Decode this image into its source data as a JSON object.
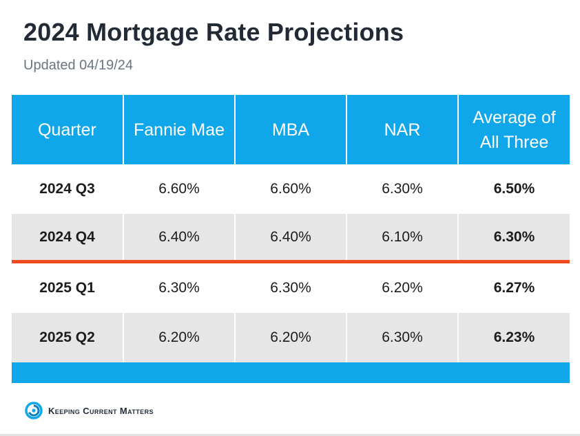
{
  "header": {
    "title": "2024 Mortgage Rate Projections",
    "subtitle": "Updated 04/19/24"
  },
  "chart_data": {
    "type": "table",
    "title": "2024 Mortgage Rate Projections",
    "subtitle": "Updated 04/19/24",
    "columns": [
      "Quarter",
      "Fannie Mae",
      "MBA",
      "NAR",
      "Average of All Three"
    ],
    "rows": [
      {
        "quarter": "2024 Q3",
        "fannie_mae": "6.60%",
        "mba": "6.60%",
        "nar": "6.30%",
        "average": "6.50%"
      },
      {
        "quarter": "2024 Q4",
        "fannie_mae": "6.40%",
        "mba": "6.40%",
        "nar": "6.10%",
        "average": "6.30%"
      },
      {
        "quarter": "2025 Q1",
        "fannie_mae": "6.30%",
        "mba": "6.30%",
        "nar": "6.20%",
        "average": "6.27%"
      },
      {
        "quarter": "2025 Q2",
        "fannie_mae": "6.20%",
        "mba": "6.20%",
        "nar": "6.30%",
        "average": "6.23%"
      }
    ],
    "colors": {
      "header_bg": "#10a7ea",
      "alt_row_bg": "#e6e6e6",
      "divider": "#f04a1e"
    }
  },
  "footer": {
    "logo_text": "Keeping Current Matters",
    "logo_icon": "kcm-swirl-icon"
  }
}
